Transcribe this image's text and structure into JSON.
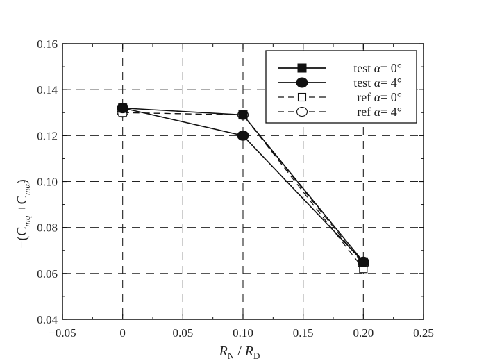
{
  "chart_data": {
    "type": "line",
    "title": "",
    "xlabel": {
      "r1": "R",
      "s1": "N",
      "slash": " / ",
      "r2": "R",
      "s2": "D"
    },
    "ylabel": {
      "p1": "−(C",
      "s1": "mq",
      "p2": " +C",
      "s2": "mα̇",
      "p3": ")"
    },
    "xlim": [
      -0.05,
      0.25
    ],
    "ylim": [
      0.04,
      0.16
    ],
    "xticks": [
      -0.05,
      0,
      0.05,
      0.1,
      0.15,
      0.2,
      0.25
    ],
    "xtick_labels": [
      "−0.05",
      "0",
      "0.05",
      "0.10",
      "0.15",
      "0.20",
      "0.25"
    ],
    "yticks": [
      0.04,
      0.06,
      0.08,
      0.1,
      0.12,
      0.14,
      0.16
    ],
    "ytick_labels": [
      "0.04",
      "0.06",
      "0.08",
      "0.10",
      "0.12",
      "0.14",
      "0.16"
    ],
    "grid": true,
    "legend_position": "top-right",
    "series": [
      {
        "name": "test α= 0°",
        "label": "test",
        "angle": "= 0°",
        "style": "solid",
        "marker": "square-filled",
        "x": [
          0,
          0.1,
          0.2
        ],
        "y": [
          0.132,
          0.129,
          0.065
        ]
      },
      {
        "name": "test α= 4°",
        "label": "test",
        "angle": "= 4°",
        "style": "solid",
        "marker": "circle-filled",
        "x": [
          0,
          0.1,
          0.2
        ],
        "y": [
          0.132,
          0.12,
          0.065
        ]
      },
      {
        "name": "ref α= 0°",
        "label": "ref",
        "angle": "= 0°",
        "style": "dashed",
        "marker": "square-open",
        "x": [
          0,
          0.1,
          0.2
        ],
        "y": [
          0.13,
          0.129,
          0.062
        ]
      },
      {
        "name": "ref α= 4°",
        "label": "ref",
        "angle": "= 4°",
        "style": "dashed",
        "marker": "circle-open",
        "x": [
          0,
          0.1,
          0.2
        ],
        "y": [
          0.13,
          0.129,
          0.064
        ]
      }
    ],
    "colors": {
      "line": "#111111",
      "grid": "#222222",
      "background": "#ffffff"
    }
  }
}
